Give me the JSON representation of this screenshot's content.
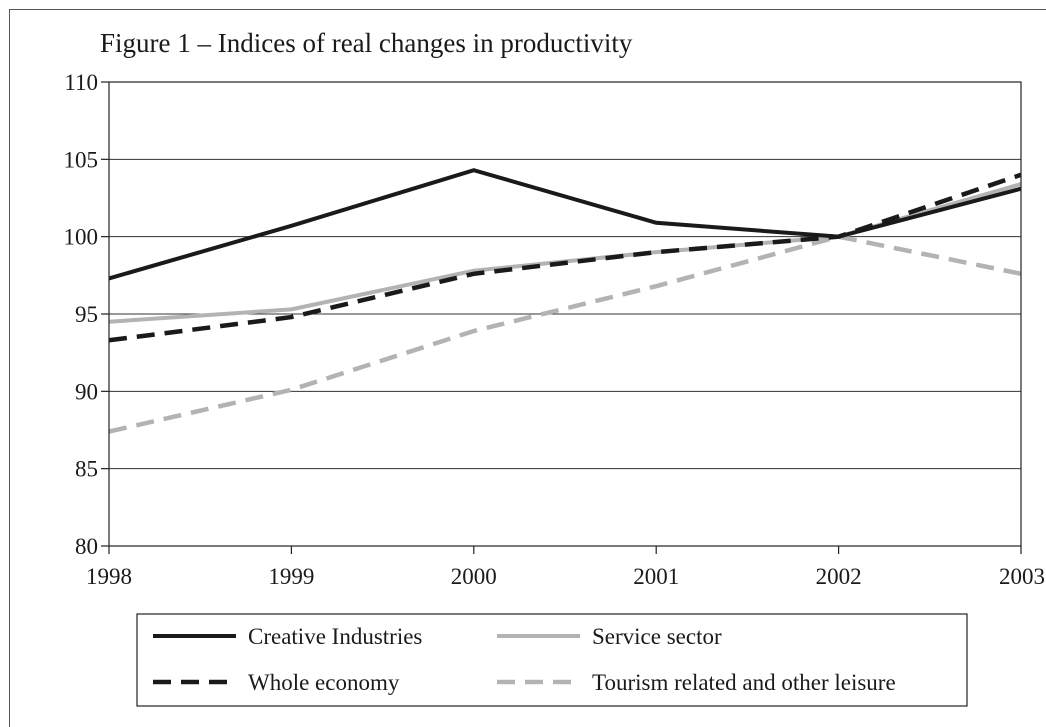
{
  "chart_data": {
    "type": "line",
    "title": "Figure 1 – Indices of real changes in productivity",
    "xlabel": "",
    "ylabel": "",
    "categories": [
      "1998",
      "1999",
      "2000",
      "2001",
      "2002",
      "2003"
    ],
    "ylim": [
      80,
      110
    ],
    "yticks": [
      "80",
      "85",
      "90",
      "95",
      "100",
      "105",
      "110"
    ],
    "grid": "horizontal",
    "legend_position": "bottom",
    "series": [
      {
        "name": "Creative Industries",
        "values": [
          97.3,
          100.7,
          104.3,
          100.9,
          100.0,
          103.1
        ],
        "color": "#1a1a1a",
        "style": "solid"
      },
      {
        "name": "Service sector",
        "values": [
          94.5,
          95.3,
          97.8,
          99.0,
          100.0,
          103.4
        ],
        "color": "#b3b3b3",
        "style": "solid"
      },
      {
        "name": "Whole economy",
        "values": [
          93.3,
          94.8,
          97.6,
          99.0,
          100.0,
          104.0
        ],
        "color": "#1a1a1a",
        "style": "dashed"
      },
      {
        "name": "Tourism related and other leisure",
        "values": [
          87.4,
          90.1,
          93.9,
          96.8,
          100.0,
          97.6
        ],
        "color": "#b3b3b3",
        "style": "dashed"
      }
    ]
  }
}
